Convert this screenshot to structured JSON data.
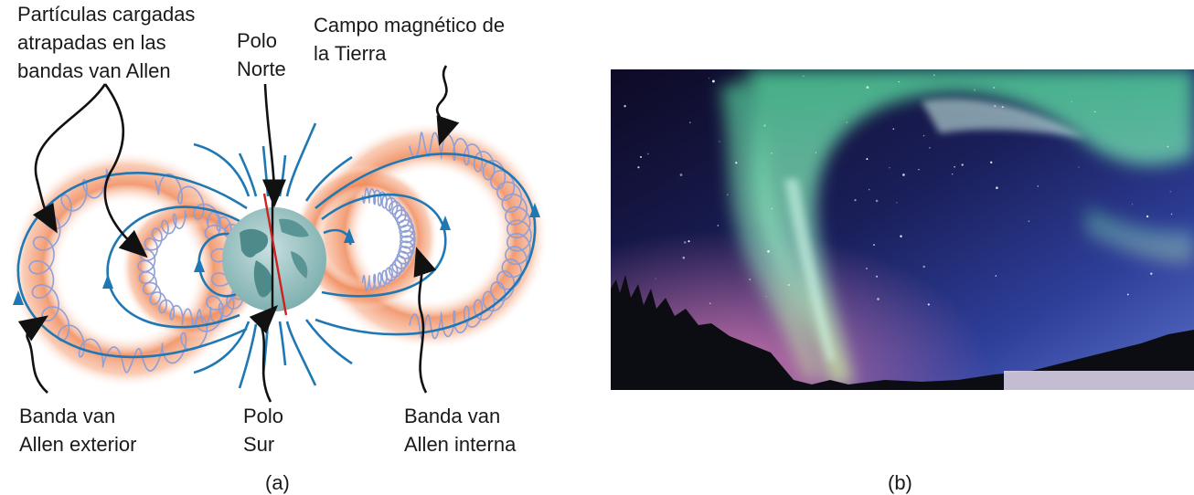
{
  "labels": {
    "trapped": [
      "Partículas cargadas",
      "atrapadas en las",
      "bandas van Allen"
    ],
    "north": [
      "Polo",
      "Norte"
    ],
    "field": [
      "Campo magnético de",
      "la Tierra"
    ],
    "outer": [
      "Banda van",
      "Allen exterior"
    ],
    "south": [
      "Polo",
      "Sur"
    ],
    "inner": [
      "Banda van",
      "Allen interna"
    ]
  },
  "captions": {
    "a": "(a)",
    "b": "(b)"
  },
  "colors": {
    "field_line": "#1f78b4",
    "belt": "#f08a5a",
    "spiral": "#8f9fd6",
    "earth": "#6fa8a8",
    "axis": "#cc2222"
  }
}
